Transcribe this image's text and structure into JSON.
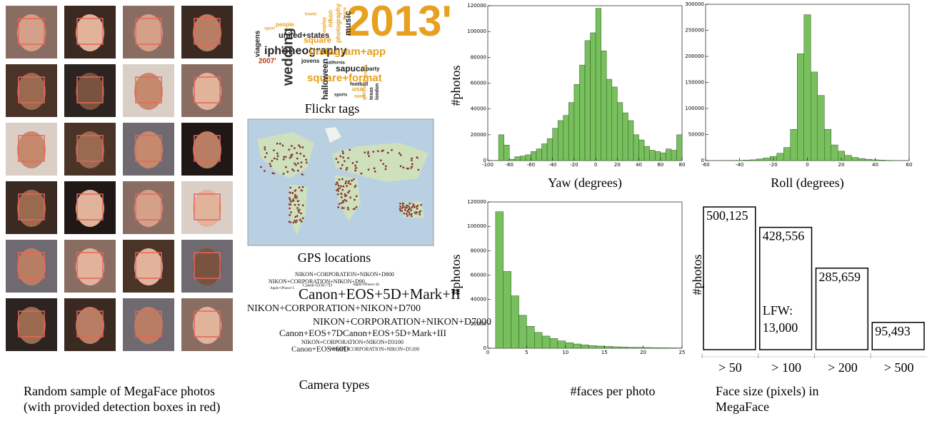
{
  "left_caption": "Random sample of MegaFace photos (with provided detection boxes in red)",
  "flickr_tags": {
    "caption": "Flickr tags",
    "words": [
      "2013'",
      "iphoneography",
      "united+states",
      "instagram+app",
      "square+format",
      "square",
      "wedding",
      "sapucai",
      "music",
      "halloween",
      "2007'",
      "party",
      "jovens",
      "viagens",
      "usa",
      "nikon",
      "photography",
      "sports",
      "football",
      "texas",
      "london",
      "travel",
      "people",
      "cosplay",
      "california",
      "germany",
      "sport",
      "france",
      "spain",
      "florida"
    ]
  },
  "gps": {
    "caption": "GPS locations"
  },
  "camera_types": {
    "caption": "Camera types",
    "words": [
      "NIKON+CORPORATION+NIKON+D800",
      "NIKON+CORPORATION+NIKON+D90",
      "Apple+iPhone+5",
      "Apple+iPhone+4S",
      "Canon+EOS+5D+Mark+II",
      "Canon+EOS+7D",
      "NIKON+CORPORATION+NIKON+D700",
      "NIKON+CORPORATION+NIKON+D7000",
      "Canon+EOS+7DCanon+EOS+5D+Mark+III",
      "NIKON+CORPORATION+NIKON+D3100",
      "Canon+EOS+60D",
      "NIKON+CORPORATION+NIKON+D5100"
    ]
  },
  "chart_data": [
    {
      "type": "histogram",
      "xlabel": "Yaw (degrees)",
      "ylabel": "#photos",
      "color": "#78bf5e",
      "bins": [
        -90,
        -85,
        -80,
        -75,
        -70,
        -65,
        -60,
        -55,
        -50,
        -45,
        -40,
        -35,
        -30,
        -25,
        -20,
        -15,
        -10,
        -5,
        0,
        5,
        10,
        15,
        20,
        25,
        30,
        35,
        40,
        45,
        50,
        55,
        60,
        65,
        70,
        75,
        80
      ],
      "values": [
        20000,
        12000,
        1000,
        3000,
        3500,
        4500,
        7000,
        9000,
        13000,
        17000,
        25000,
        31000,
        35000,
        45000,
        59000,
        74000,
        93000,
        99000,
        118000,
        85000,
        63000,
        57000,
        45000,
        37000,
        31000,
        20000,
        16000,
        11000,
        8000,
        7000,
        6000,
        9000,
        8000,
        20000
      ],
      "xlim": [
        -100,
        80
      ],
      "xticks": [
        -100,
        -80,
        -60,
        -40,
        -20,
        0,
        20,
        40,
        60,
        80
      ],
      "ylim": [
        0,
        120000
      ],
      "yticks": [
        0,
        20000,
        40000,
        60000,
        80000,
        100000,
        120000
      ]
    },
    {
      "type": "histogram",
      "xlabel": "Roll (degrees)",
      "color": "#78bf5e",
      "bins": [
        -50,
        -46,
        -42,
        -38,
        -34,
        -30,
        -26,
        -22,
        -18,
        -14,
        -10,
        -6,
        -2,
        2,
        6,
        10,
        14,
        18,
        22,
        26,
        30,
        34,
        38,
        42,
        46,
        50
      ],
      "values": [
        100,
        200,
        400,
        800,
        1500,
        3000,
        5000,
        8000,
        14000,
        25000,
        60000,
        205000,
        280000,
        170000,
        125000,
        60000,
        30000,
        18000,
        10000,
        6000,
        4000,
        2500,
        1500,
        800,
        400
      ],
      "xlim": [
        -60,
        60
      ],
      "xticks": [
        -60,
        -40,
        -20,
        0,
        20,
        40,
        60
      ],
      "ylim": [
        0,
        300000
      ],
      "yticks": [
        0,
        50000,
        100000,
        150000,
        200000,
        250000,
        300000
      ]
    },
    {
      "type": "histogram",
      "xlabel": "#faces per photo",
      "ylabel": "#photos",
      "color": "#78bf5e",
      "bins": [
        1,
        2,
        3,
        4,
        5,
        6,
        7,
        8,
        9,
        10,
        11,
        12,
        13,
        14,
        15,
        16,
        17,
        18,
        19,
        20,
        21,
        22,
        23,
        24,
        25
      ],
      "values": [
        112000,
        63000,
        43000,
        27000,
        18000,
        13000,
        10000,
        8000,
        6000,
        4500,
        3500,
        2800,
        2200,
        1800,
        1500,
        1200,
        1000,
        800,
        700,
        600,
        500,
        400,
        300,
        250
      ],
      "xlim": [
        0,
        25
      ],
      "xticks": [
        0,
        5,
        10,
        15,
        20,
        25
      ],
      "ylim": [
        0,
        120000
      ],
      "yticks": [
        0,
        20000,
        40000,
        60000,
        80000,
        100000,
        120000
      ]
    },
    {
      "type": "bar",
      "xlabel": "Face size (pixels) in MegaFace",
      "ylabel": "#photos",
      "color": "#ffffff",
      "categories": [
        "> 50",
        "> 100",
        "> 200",
        "> 500"
      ],
      "values": [
        500125,
        428556,
        285659,
        95493
      ],
      "value_labels": [
        "500,125",
        "428,556",
        "285,659",
        "95,493"
      ],
      "annotation": [
        "LFW:",
        "13,000"
      ],
      "ylim": [
        0,
        500125
      ]
    }
  ]
}
